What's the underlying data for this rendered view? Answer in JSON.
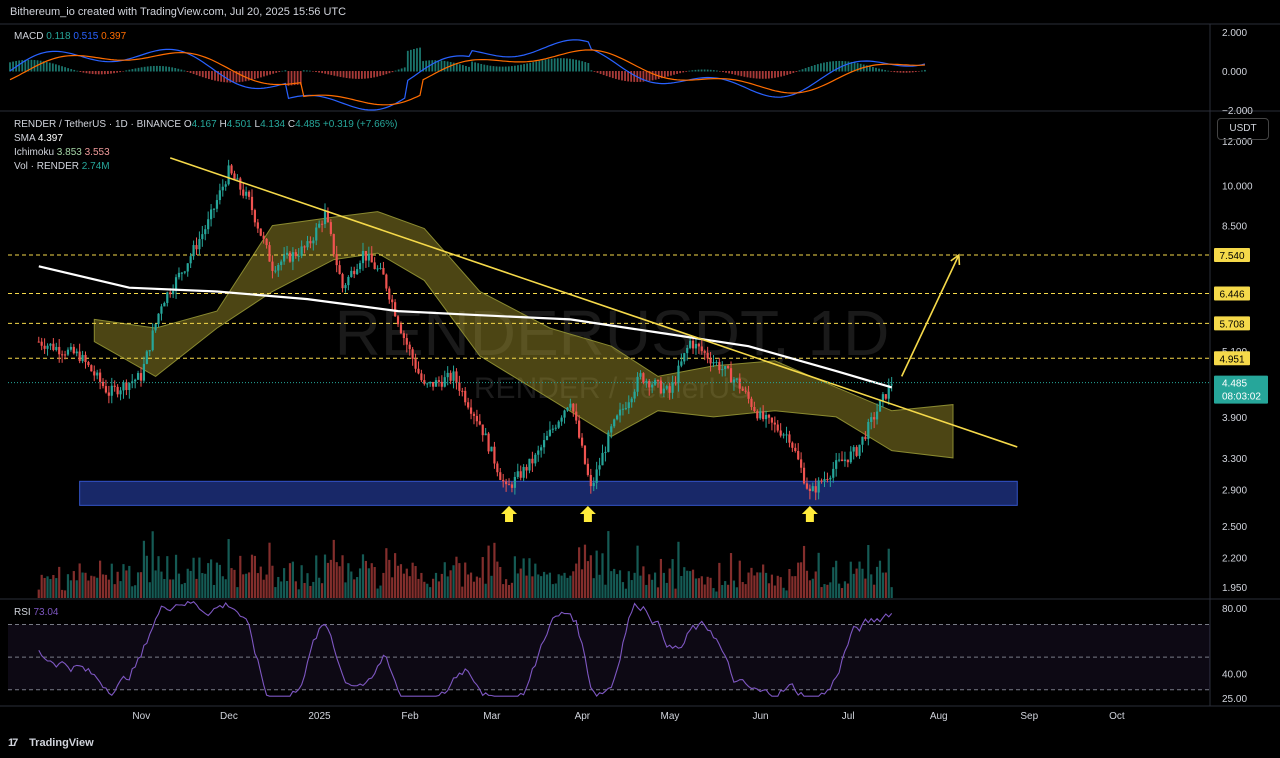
{
  "header": {
    "attribution": "Bithereum_io created with TradingView.com, Jul 20, 2025 15:56 UTC"
  },
  "macd": {
    "label": "MACD",
    "v1": "0.118",
    "v2": "0.515",
    "v3": "0.397",
    "ticks": [
      "2.000",
      "0.000",
      "−2.000"
    ]
  },
  "main_legend": {
    "symbol": "RENDER / TetherUS · 1D · BINANCE",
    "o_label": "O",
    "o": "4.167",
    "h_label": "H",
    "h": "4.501",
    "l_label": "L",
    "l": "4.134",
    "c_label": "C",
    "c": "4.485",
    "change": "+0.319 (+7.66%)",
    "sma_label": "SMA",
    "sma": "4.397",
    "ichimoku_label": "Ichimoku",
    "ichi1": "3.853",
    "ichi2": "3.553",
    "vol_label": "Vol · RENDER",
    "vol": "2.74M"
  },
  "watermark": {
    "line1": "RENDERUSDT, 1D",
    "line2": "RENDER / TetherUS"
  },
  "currency_button": "USDT",
  "price_scale": {
    "ticks": [
      "12.000",
      "10.000",
      "8.500",
      "5.100",
      "3.900",
      "3.300",
      "2.900",
      "2.500",
      "2.200",
      "1.950"
    ],
    "levels": [
      "7.540",
      "6.446",
      "5.708",
      "4.951"
    ],
    "current_price": "4.485",
    "countdown": "08:03:02"
  },
  "rsi": {
    "label": "RSI",
    "value": "73.04",
    "ticks": [
      "80.00",
      "40.00",
      "25.00"
    ]
  },
  "time_axis": [
    "Nov",
    "Dec",
    "2025",
    "Feb",
    "Mar",
    "Apr",
    "May",
    "Jun",
    "Jul",
    "Aug",
    "Sep",
    "Oct"
  ],
  "footer": {
    "brand": "TradingView",
    "logo_mark": "17"
  },
  "colors": {
    "up": "#26a69a",
    "down": "#ef5350",
    "trendline": "#f5d94a",
    "sma": "#ffffff",
    "cloud": "#a89a2c",
    "support_zone": "#1c2f7a",
    "rsi": "#7e57c2",
    "macd": "#2962ff",
    "signal": "#ff6d00"
  },
  "chart_data": {
    "type": "candlestick",
    "symbol": "RENDER / TetherUS",
    "timeframe": "1D",
    "exchange": "BINANCE",
    "y_scale": "log",
    "ylim": [
      1.85,
      13.5
    ],
    "x_range": [
      "2024-10-01",
      "2025-10-15"
    ],
    "ohlc_last": {
      "date": "2025-07-20",
      "open": 4.167,
      "high": 4.501,
      "low": 4.134,
      "close": 4.485
    },
    "close_path": [
      [
        "2024-10-01",
        5.3
      ],
      [
        "2024-10-15",
        5.0
      ],
      [
        "2024-10-25",
        4.3
      ],
      [
        "2024-11-05",
        4.6
      ],
      [
        "2024-11-12",
        6.2
      ],
      [
        "2024-11-20",
        7.2
      ],
      [
        "2024-11-28",
        8.6
      ],
      [
        "2024-12-05",
        10.6
      ],
      [
        "2024-12-12",
        9.4
      ],
      [
        "2024-12-20",
        7.2
      ],
      [
        "2025-01-01",
        7.8
      ],
      [
        "2025-01-07",
        8.9
      ],
      [
        "2025-01-13",
        6.6
      ],
      [
        "2025-01-20",
        7.6
      ],
      [
        "2025-01-27",
        6.9
      ],
      [
        "2025-02-03",
        5.4
      ],
      [
        "2025-02-10",
        4.4
      ],
      [
        "2025-02-20",
        4.6
      ],
      [
        "2025-03-01",
        3.8
      ],
      [
        "2025-03-10",
        2.9
      ],
      [
        "2025-03-20",
        3.3
      ],
      [
        "2025-04-01",
        4.2
      ],
      [
        "2025-04-08",
        2.9
      ],
      [
        "2025-04-15",
        3.7
      ],
      [
        "2025-04-25",
        4.6
      ],
      [
        "2025-05-05",
        4.3
      ],
      [
        "2025-05-12",
        5.3
      ],
      [
        "2025-05-20",
        4.9
      ],
      [
        "2025-05-28",
        4.5
      ],
      [
        "2025-06-05",
        3.9
      ],
      [
        "2025-06-15",
        3.6
      ],
      [
        "2025-06-22",
        2.85
      ],
      [
        "2025-07-01",
        3.2
      ],
      [
        "2025-07-08",
        3.4
      ],
      [
        "2025-07-15",
        4.0
      ],
      [
        "2025-07-20",
        4.485
      ]
    ],
    "sma_path": [
      [
        "2024-10-01",
        7.2
      ],
      [
        "2024-11-01",
        6.6
      ],
      [
        "2024-12-01",
        6.5
      ],
      [
        "2025-01-01",
        6.3
      ],
      [
        "2025-02-01",
        6.0
      ],
      [
        "2025-03-01",
        5.9
      ],
      [
        "2025-04-01",
        5.8
      ],
      [
        "2025-05-01",
        5.5
      ],
      [
        "2025-06-01",
        5.2
      ],
      [
        "2025-07-01",
        4.7
      ],
      [
        "2025-07-20",
        4.397
      ]
    ],
    "ichimoku_cloud": [
      [
        "2024-10-20",
        5.8,
        5.3
      ],
      [
        "2024-11-10",
        5.6,
        4.6
      ],
      [
        "2024-12-01",
        6.0,
        5.6
      ],
      [
        "2024-12-20",
        8.5,
        6.5
      ],
      [
        "2025-01-10",
        8.8,
        7.4
      ],
      [
        "2025-01-25",
        9.0,
        7.6
      ],
      [
        "2025-02-10",
        8.4,
        6.8
      ],
      [
        "2025-03-01",
        6.5,
        5.0
      ],
      [
        "2025-03-25",
        5.6,
        4.2
      ],
      [
        "2025-04-15",
        5.2,
        3.6
      ],
      [
        "2025-05-01",
        4.6,
        4.0
      ],
      [
        "2025-05-20",
        4.8,
        3.9
      ],
      [
        "2025-06-10",
        4.9,
        4.0
      ],
      [
        "2025-07-01",
        4.4,
        3.9
      ],
      [
        "2025-07-20",
        4.0,
        3.4
      ],
      [
        "2025-08-10",
        4.1,
        3.3
      ]
    ],
    "trendline": [
      [
        "2024-11-15",
        11.2
      ],
      [
        "2025-09-01",
        3.45
      ]
    ],
    "support_zone": {
      "from": "2024-10-15",
      "to": "2025-09-01",
      "low": 2.72,
      "high": 3.0
    },
    "horizontal_levels": [
      7.54,
      6.446,
      5.708,
      4.951
    ],
    "projection_arrow": [
      [
        "2025-07-20",
        4.6
      ],
      [
        "2025-08-12",
        7.54
      ]
    ],
    "bounce_markers": [
      "2025-03-11",
      "2025-04-07",
      "2025-06-22"
    ],
    "macd": {
      "macd": 0.118,
      "signal": 0.515,
      "histogram": 0.397,
      "ylim": [
        -2,
        2
      ]
    },
    "rsi": {
      "value": 73.04,
      "upper_band": 70,
      "lower_band": 30,
      "ylim": [
        20,
        85
      ]
    },
    "volume_last": "2.74M"
  }
}
